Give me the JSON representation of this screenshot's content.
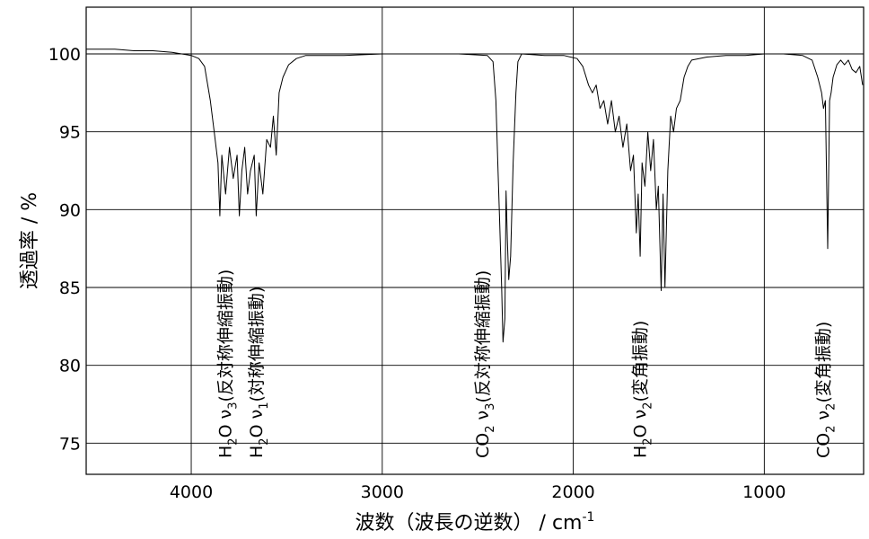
{
  "chart_data": {
    "type": "line",
    "xlabel": "波数（波長の逆数） / cm",
    "xlabel_sup": "-1",
    "ylabel": "透過率 / %",
    "xlim": [
      4550,
      480
    ],
    "ylim": [
      73,
      103
    ],
    "x_reversed": true,
    "grid": true,
    "x_ticks": [
      4000,
      3000,
      2000,
      1000
    ],
    "y_ticks": [
      75,
      80,
      85,
      90,
      95,
      100
    ],
    "series": [
      {
        "points": [
          [
            4550,
            100.3
          ],
          [
            4400,
            100.3
          ],
          [
            4300,
            100.2
          ],
          [
            4200,
            100.2
          ],
          [
            4100,
            100.1
          ],
          [
            4050,
            100.0
          ],
          [
            4000,
            99.9
          ],
          [
            3960,
            99.7
          ],
          [
            3930,
            99.2
          ],
          [
            3900,
            97.0
          ],
          [
            3880,
            95.0
          ],
          [
            3860,
            93.0
          ],
          [
            3850,
            89.6
          ],
          [
            3840,
            93.5
          ],
          [
            3820,
            91.0
          ],
          [
            3800,
            94.0
          ],
          [
            3780,
            92.0
          ],
          [
            3760,
            93.5
          ],
          [
            3748,
            89.6
          ],
          [
            3735,
            92.5
          ],
          [
            3720,
            94.0
          ],
          [
            3705,
            91.0
          ],
          [
            3690,
            92.5
          ],
          [
            3670,
            93.5
          ],
          [
            3660,
            89.6
          ],
          [
            3645,
            93.0
          ],
          [
            3625,
            91.0
          ],
          [
            3605,
            94.5
          ],
          [
            3585,
            94.0
          ],
          [
            3570,
            96.0
          ],
          [
            3555,
            93.5
          ],
          [
            3540,
            97.5
          ],
          [
            3520,
            98.5
          ],
          [
            3490,
            99.3
          ],
          [
            3450,
            99.7
          ],
          [
            3400,
            99.9
          ],
          [
            3300,
            99.9
          ],
          [
            3200,
            99.9
          ],
          [
            3000,
            100.0
          ],
          [
            2800,
            100.0
          ],
          [
            2600,
            100.0
          ],
          [
            2450,
            99.9
          ],
          [
            2420,
            99.5
          ],
          [
            2405,
            97.0
          ],
          [
            2395,
            93.0
          ],
          [
            2385,
            89.0
          ],
          [
            2375,
            85.0
          ],
          [
            2368,
            81.5
          ],
          [
            2358,
            83.0
          ],
          [
            2352,
            91.2
          ],
          [
            2345,
            88.0
          ],
          [
            2338,
            85.5
          ],
          [
            2328,
            87.0
          ],
          [
            2315,
            93.0
          ],
          [
            2300,
            97.5
          ],
          [
            2290,
            99.5
          ],
          [
            2270,
            100.0
          ],
          [
            2150,
            99.9
          ],
          [
            2050,
            99.9
          ],
          [
            1980,
            99.7
          ],
          [
            1950,
            99.2
          ],
          [
            1920,
            98.0
          ],
          [
            1900,
            97.5
          ],
          [
            1880,
            98.0
          ],
          [
            1860,
            96.5
          ],
          [
            1840,
            97.0
          ],
          [
            1820,
            95.5
          ],
          [
            1800,
            97.0
          ],
          [
            1780,
            95.0
          ],
          [
            1760,
            96.0
          ],
          [
            1740,
            94.0
          ],
          [
            1720,
            95.5
          ],
          [
            1700,
            92.5
          ],
          [
            1685,
            93.5
          ],
          [
            1670,
            88.5
          ],
          [
            1660,
            91.0
          ],
          [
            1650,
            87.0
          ],
          [
            1640,
            93.0
          ],
          [
            1625,
            91.5
          ],
          [
            1610,
            95.0
          ],
          [
            1595,
            92.5
          ],
          [
            1580,
            94.5
          ],
          [
            1565,
            90.0
          ],
          [
            1555,
            91.5
          ],
          [
            1540,
            84.8
          ],
          [
            1530,
            91.0
          ],
          [
            1520,
            85.0
          ],
          [
            1505,
            92.5
          ],
          [
            1490,
            96.0
          ],
          [
            1475,
            95.0
          ],
          [
            1460,
            96.5
          ],
          [
            1440,
            97.0
          ],
          [
            1420,
            98.5
          ],
          [
            1400,
            99.2
          ],
          [
            1380,
            99.6
          ],
          [
            1300,
            99.8
          ],
          [
            1200,
            99.9
          ],
          [
            1100,
            99.9
          ],
          [
            1000,
            100.0
          ],
          [
            900,
            100.0
          ],
          [
            800,
            99.9
          ],
          [
            750,
            99.6
          ],
          [
            720,
            98.5
          ],
          [
            700,
            97.5
          ],
          [
            690,
            96.5
          ],
          [
            680,
            97.0
          ],
          [
            668,
            87.5
          ],
          [
            658,
            97.0
          ],
          [
            650,
            97.5
          ],
          [
            640,
            98.5
          ],
          [
            620,
            99.3
          ],
          [
            600,
            99.6
          ],
          [
            580,
            99.3
          ],
          [
            560,
            99.6
          ],
          [
            540,
            99.0
          ],
          [
            520,
            98.8
          ],
          [
            500,
            99.2
          ],
          [
            485,
            98.0
          ]
        ]
      }
    ],
    "annotations": [
      {
        "x": 3790,
        "sub": "2",
        "nu_sub": "3",
        "text": "(反対称伸縮振動)",
        "molecule": "H",
        "molecule_tail": "O"
      },
      {
        "x": 3628,
        "sub": "2",
        "nu_sub": "1",
        "text": "(対称伸縮振動)",
        "molecule": "H",
        "molecule_tail": "O"
      },
      {
        "x": 2445,
        "sub": "2",
        "nu_sub": "3",
        "text": "(反対称伸縮振動)",
        "molecule": "CO",
        "molecule_tail": ""
      },
      {
        "x": 1620,
        "sub": "2",
        "nu_sub": "2",
        "text": "(変角振動)",
        "molecule": "H",
        "molecule_tail": "O"
      },
      {
        "x": 660,
        "sub": "2",
        "nu_sub": "2",
        "text": "(変角振動)",
        "molecule": "CO",
        "molecule_tail": ""
      }
    ],
    "colors": {
      "line": "#000000",
      "grid": "#000000",
      "background": "#ffffff"
    }
  }
}
